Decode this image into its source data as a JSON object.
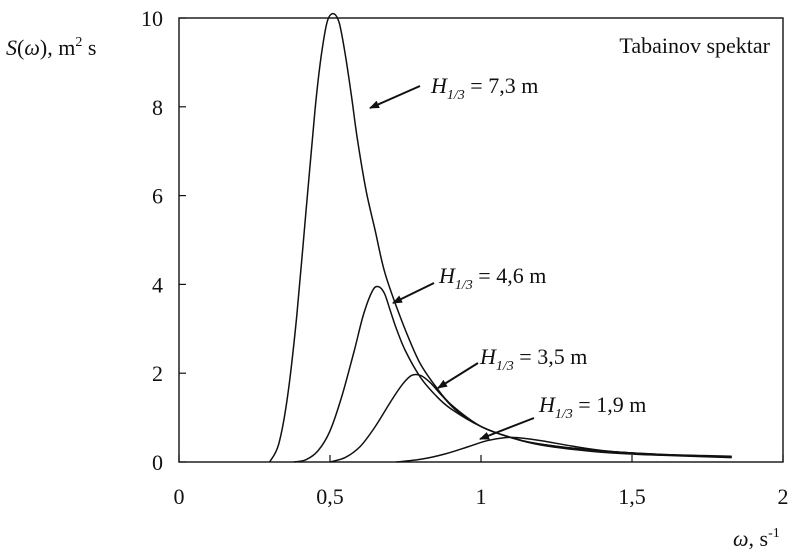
{
  "chart_data": {
    "type": "line",
    "title": "Tabainov spektar",
    "ylabel": "S(ω), m² s",
    "ylabel_parts": {
      "func": "S",
      "var": "ω",
      "unit": "m",
      "unit_exp": "2",
      "unit_tail": " s"
    },
    "xlabel": "ω, s⁻¹",
    "xlabel_parts": {
      "var": "ω",
      "unit": "s",
      "unit_exp": "-1"
    },
    "xlim": [
      0,
      2
    ],
    "ylim": [
      0,
      10
    ],
    "xticks": [
      0,
      0.5,
      1,
      1.5,
      2
    ],
    "xtick_labels": [
      "0",
      "0,5",
      "1",
      "1,5",
      "2"
    ],
    "yticks": [
      0,
      2,
      4,
      6,
      8,
      10
    ],
    "ytick_labels": [
      "0",
      "2",
      "4",
      "6",
      "8",
      "10"
    ],
    "grid": false,
    "series": [
      {
        "name": "H1/3 = 7,3 m",
        "label": {
          "sym": "H",
          "sub": "1/3",
          "value": " = 7,3 m"
        },
        "x": [
          0.3,
          0.33,
          0.36,
          0.39,
          0.42,
          0.45,
          0.47,
          0.49,
          0.51,
          0.53,
          0.55,
          0.57,
          0.59,
          0.62,
          0.65,
          0.68,
          0.72,
          0.76,
          0.8,
          0.85,
          0.9,
          1.0,
          1.1,
          1.2,
          1.4,
          1.6,
          1.83
        ],
        "values": [
          0.0,
          0.4,
          1.5,
          3.3,
          5.6,
          7.9,
          9.1,
          9.9,
          10.1,
          9.9,
          9.2,
          8.3,
          7.3,
          6.1,
          5.2,
          4.3,
          3.5,
          2.8,
          2.2,
          1.7,
          1.3,
          0.8,
          0.55,
          0.38,
          0.22,
          0.15,
          0.1
        ]
      },
      {
        "name": "H1/3 = 4,6 m",
        "label": {
          "sym": "H",
          "sub": "1/3",
          "value": " = 4,6 m"
        },
        "x": [
          0.38,
          0.42,
          0.46,
          0.5,
          0.54,
          0.58,
          0.61,
          0.64,
          0.66,
          0.68,
          0.7,
          0.72,
          0.75,
          0.8,
          0.85,
          0.9,
          1.0,
          1.1,
          1.2,
          1.4,
          1.6,
          1.83
        ],
        "values": [
          0.0,
          0.05,
          0.25,
          0.7,
          1.5,
          2.5,
          3.3,
          3.85,
          3.95,
          3.8,
          3.4,
          3.0,
          2.5,
          1.9,
          1.5,
          1.2,
          0.8,
          0.55,
          0.4,
          0.25,
          0.17,
          0.12
        ]
      },
      {
        "name": "H1/3 = 3,5 m",
        "label": {
          "sym": "H",
          "sub": "1/3",
          "value": " = 3,5 m"
        },
        "x": [
          0.5,
          0.55,
          0.6,
          0.65,
          0.7,
          0.74,
          0.77,
          0.8,
          0.83,
          0.87,
          0.92,
          1.0,
          1.1,
          1.2,
          1.4,
          1.6,
          1.83
        ],
        "values": [
          0.0,
          0.1,
          0.35,
          0.8,
          1.35,
          1.75,
          1.95,
          1.95,
          1.8,
          1.5,
          1.15,
          0.8,
          0.55,
          0.4,
          0.25,
          0.17,
          0.13
        ]
      },
      {
        "name": "H1/3 = 1,9 m",
        "label": {
          "sym": "H",
          "sub": "1/3",
          "value": " = 1,9 m"
        },
        "x": [
          0.72,
          0.8,
          0.88,
          0.96,
          1.02,
          1.08,
          1.12,
          1.2,
          1.3,
          1.4,
          1.55,
          1.7,
          1.83
        ],
        "values": [
          0.0,
          0.06,
          0.18,
          0.35,
          0.48,
          0.55,
          0.55,
          0.48,
          0.36,
          0.26,
          0.18,
          0.14,
          0.12
        ]
      }
    ]
  }
}
